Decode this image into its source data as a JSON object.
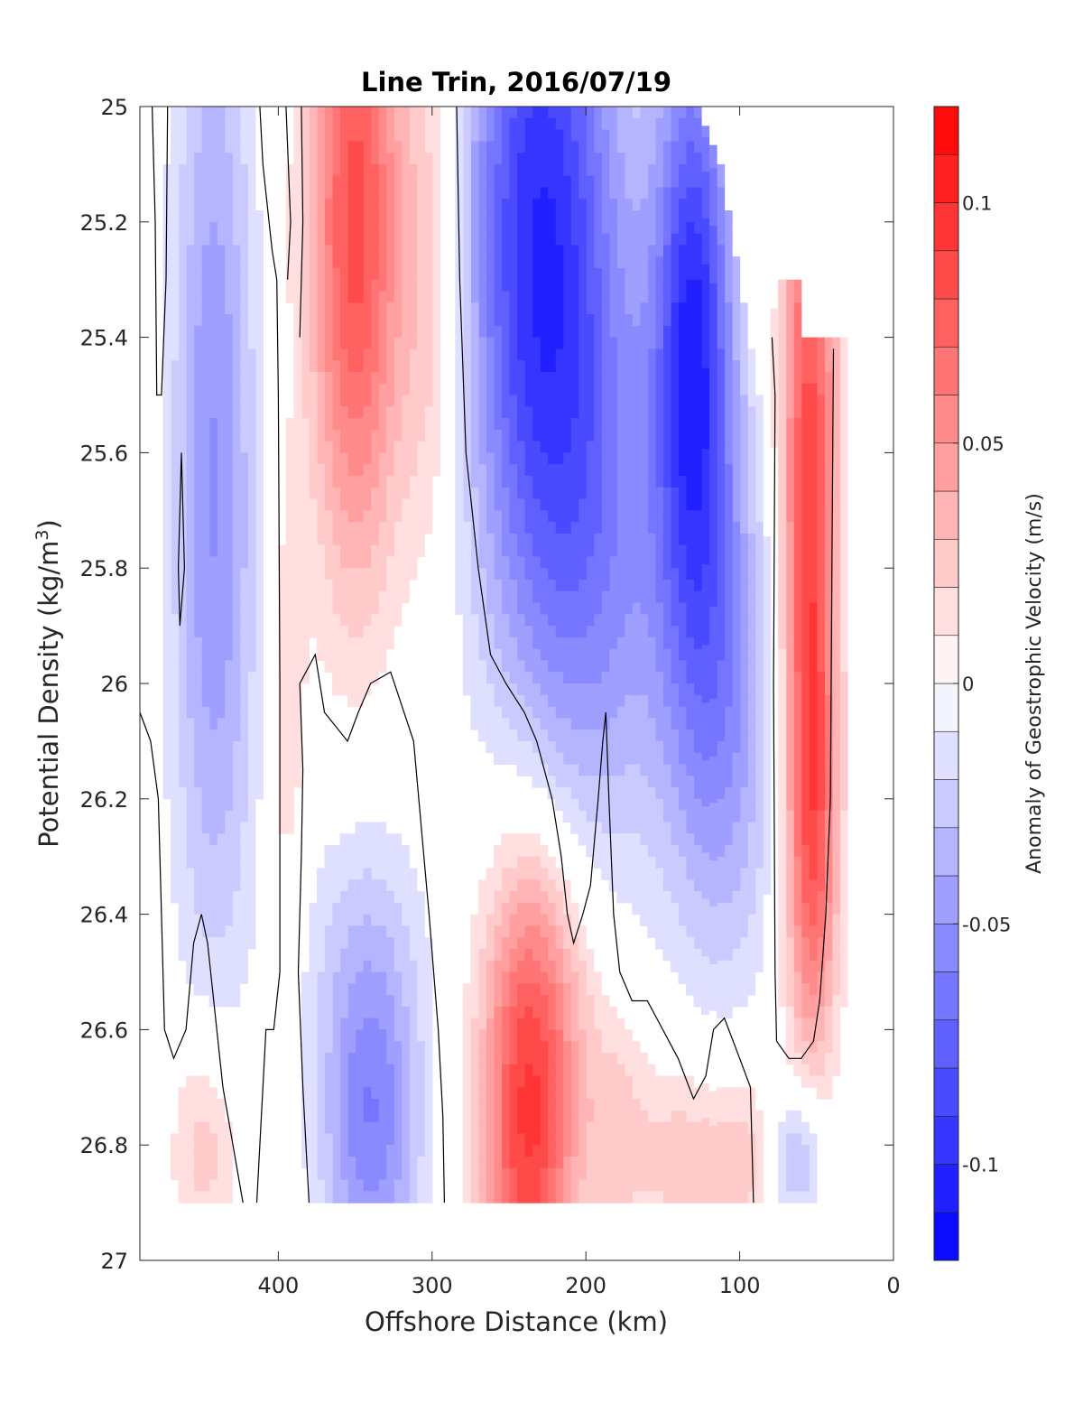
{
  "chart_data": {
    "type": "contourf",
    "title": "Line Trin, 2016/07/19",
    "xlabel": "Offshore Distance (km)",
    "ylabel": "Potential Density (kg/m",
    "ylabel_sup": "3",
    "ylabel_close": ")",
    "colorbar_label": "Anomaly of Geostrophic Velocity (m/s)",
    "xlim": [
      490,
      0
    ],
    "ylim": [
      25,
      27
    ],
    "y_reversed": true,
    "x_reversed": true,
    "x_ticks": [
      400,
      300,
      200,
      100,
      0
    ],
    "x_tick_labels": [
      "400",
      "300",
      "200",
      "100",
      "0"
    ],
    "y_ticks": [
      25,
      25.2,
      25.4,
      25.6,
      25.8,
      26,
      26.2,
      26.4,
      26.6,
      26.8,
      27
    ],
    "y_tick_labels": [
      "25",
      "25.2",
      "25.4",
      "25.6",
      "25.8",
      "26",
      "26.2",
      "26.4",
      "26.6",
      "26.8",
      "27"
    ],
    "colorbar_range": [
      -0.12,
      0.12
    ],
    "colorbar_ticks": [
      0.1,
      0.05,
      0,
      -0.05,
      -0.1
    ],
    "colorbar_tick_labels": [
      "0.1",
      "0.05",
      "0",
      "-0.05",
      "-0.1"
    ],
    "colormap": "blue-white-red diverging, 24 levels of 0.01 m/s",
    "zero_contour": "black",
    "features": [
      {
        "x_range": [
          405,
          480
        ],
        "y_range": [
          25,
          26.6
        ],
        "peak_velocity": -0.03
      },
      {
        "x_range": [
          290,
          380
        ],
        "y_range": [
          25,
          25.9
        ],
        "peak_velocity": 0.09
      },
      {
        "x_range": [
          90,
          280
        ],
        "y_range": [
          25,
          26.5
        ],
        "peak_velocity": -0.1
      },
      {
        "x_range": [
          30,
          75
        ],
        "y_range": [
          25.3,
          26.65
        ],
        "peak_velocity": 0.09
      },
      {
        "x_range": [
          200,
          285
        ],
        "y_range": [
          26.1,
          26.9
        ],
        "peak_velocity": 0.08
      },
      {
        "x_range": [
          310,
          390
        ],
        "y_range": [
          26.2,
          26.9
        ],
        "peak_velocity": -0.05
      }
    ],
    "data_domain": {
      "x_range": [
        30,
        490
      ],
      "y_range": [
        25,
        26.9
      ]
    }
  },
  "colors": {
    "negative_max": "#0000ff",
    "neutral": "#ffffff",
    "positive_max": "#ff0000",
    "contour": "#000000",
    "axes": "#262626"
  }
}
